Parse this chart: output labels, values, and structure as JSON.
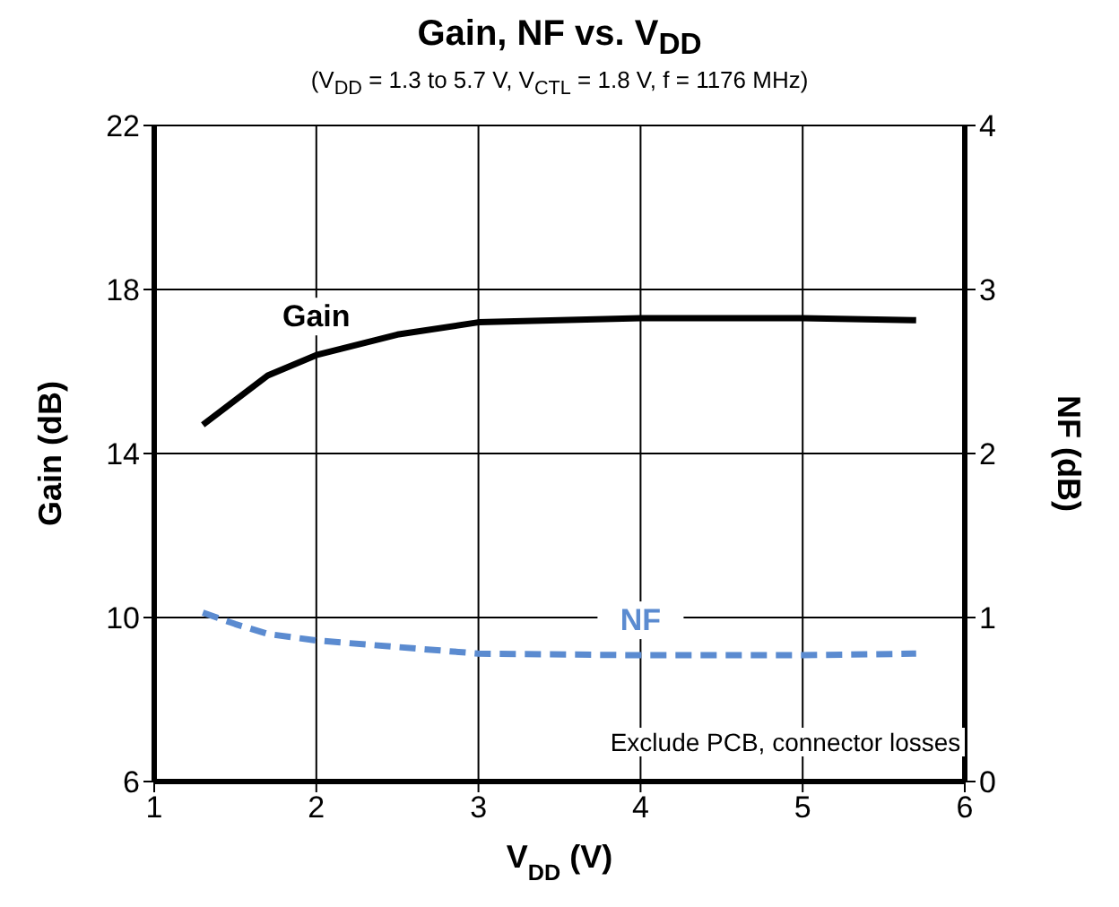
{
  "chart_data": {
    "type": "line",
    "title": "Gain, NF vs. V$_{DD}$",
    "subtitle": "(V$_{DD}$ = 1.3 to 5.7 V, V$_{CTL}$ = 1.8 V, f = 1176 MHz)",
    "xlabel": "V$_{DD}$ (V)",
    "ylabel": "Gain (dB)",
    "y2label": "NF (dB)",
    "x": [
      1.3,
      1.5,
      1.7,
      2,
      2.5,
      3,
      4,
      5,
      5.7
    ],
    "series": [
      {
        "name": "Gain",
        "color": "#000000",
        "line_style": "solid",
        "values": [
          14.7,
          15.3,
          15.9,
          16.4,
          16.9,
          17.2,
          17.3,
          17.3,
          17.25
        ]
      },
      {
        "name": "NF",
        "color": "#5b8bd0",
        "line_style": "dashed",
        "axis": "y2",
        "values": [
          1.03,
          0.96,
          0.9,
          0.86,
          0.82,
          0.78,
          0.77,
          0.77,
          0.78
        ]
      }
    ],
    "xlim": [
      1,
      6
    ],
    "xticks": [
      1,
      2,
      3,
      4,
      5,
      6
    ],
    "ylim": [
      6,
      22
    ],
    "yticks": [
      6,
      10,
      14,
      18,
      22
    ],
    "y2lim": [
      0,
      4
    ],
    "y2ticks": [
      0,
      1,
      2,
      3,
      4
    ],
    "grid": true,
    "legend": false,
    "marker": "none",
    "annotations": [
      "Exclude PCB, connector losses"
    ]
  }
}
